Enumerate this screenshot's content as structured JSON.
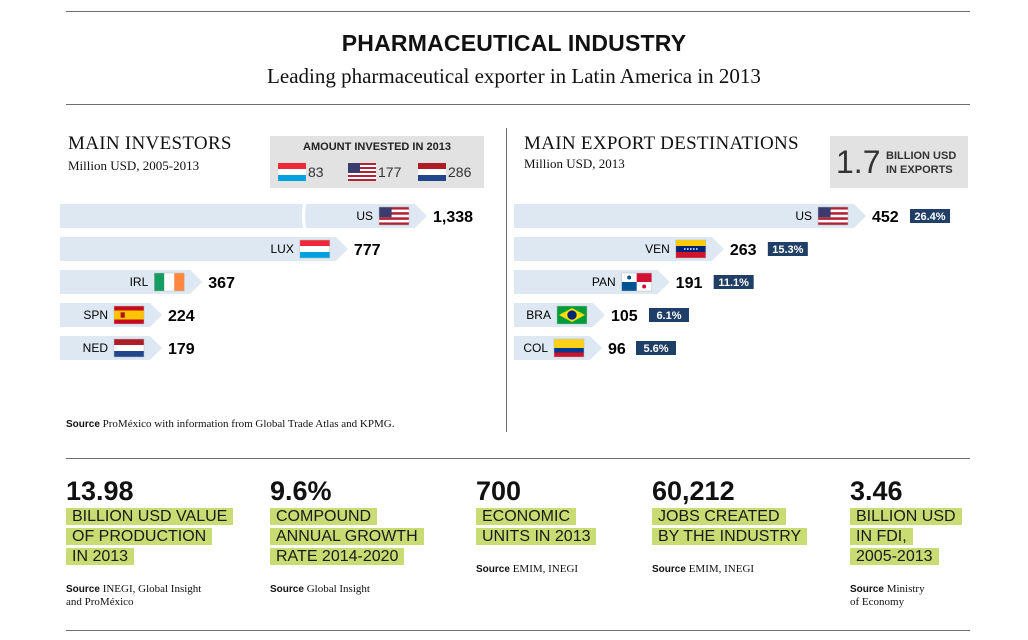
{
  "header": {
    "title": "PHARMACEUTICAL INDUSTRY",
    "subtitle": "Leading pharmaceutical exporter in Latin America in 2013"
  },
  "investors": {
    "heading": "MAIN INVESTORS",
    "subheading": "Million USD, 2005-2013",
    "legend": {
      "title": "AMOUNT INVESTED IN 2013",
      "items": [
        {
          "flag": "luxembourg-flag",
          "value": "83"
        },
        {
          "flag": "us-flag",
          "value": "177"
        },
        {
          "flag": "netherlands-flag",
          "value": "286"
        }
      ]
    },
    "source_label": "Source",
    "source_text": "ProMéxico with information from Global Trade Atlas and KPMG."
  },
  "exports": {
    "heading": "MAIN EXPORT DESTINATIONS",
    "subheading": "Million USD, 2013",
    "total_value": "1.7",
    "total_label_1": "BILLION USD",
    "total_label_2": "IN EXPORTS"
  },
  "chart_data": [
    {
      "type": "bar",
      "title": "MAIN INVESTORS",
      "subtitle": "Million USD, 2005-2013",
      "categories": [
        "US",
        "LUX",
        "IRL",
        "SPN",
        "NED"
      ],
      "values": [
        1338,
        777,
        367,
        224,
        179
      ],
      "value_labels": [
        "1,338",
        "777",
        "367",
        "224",
        "179"
      ],
      "flags": [
        "us-flag",
        "luxembourg-flag",
        "ireland-flag",
        "spain-flag",
        "netherlands-flag"
      ],
      "axis_break": true
    },
    {
      "type": "bar",
      "title": "MAIN EXPORT DESTINATIONS",
      "subtitle": "Million USD, 2013",
      "categories": [
        "US",
        "VEN",
        "PAN",
        "BRA",
        "COL"
      ],
      "values": [
        452,
        263,
        191,
        105,
        96
      ],
      "value_labels": [
        "452",
        "263",
        "191",
        "105",
        "96"
      ],
      "shares": [
        "26.4%",
        "15.3%",
        "11.1%",
        "6.1%",
        "5.6%"
      ],
      "flags": [
        "us-flag",
        "venezuela-flag",
        "panama-flag",
        "brazil-flag",
        "colombia-flag"
      ]
    }
  ],
  "stats": [
    {
      "value": "13.98",
      "lines": [
        "BILLION USD VALUE",
        "OF PRODUCTION",
        "IN 2013"
      ],
      "source_label": "Source",
      "source_lines": [
        "INEGI, Global Insight",
        "and ProMéxico"
      ]
    },
    {
      "value": "9.6%",
      "lines": [
        "COMPOUND",
        "ANNUAL GROWTH",
        "RATE 2014-2020"
      ],
      "source_label": "Source",
      "source_lines": [
        "Global Insight"
      ]
    },
    {
      "value": "700",
      "lines": [
        "ECONOMIC",
        "UNITS IN 2013"
      ],
      "source_label": "Source",
      "source_lines": [
        "EMIM, INEGI"
      ]
    },
    {
      "value": "60,212",
      "lines": [
        "JOBS CREATED",
        "BY THE INDUSTRY"
      ],
      "source_label": "Source",
      "source_lines": [
        "EMIM, INEGI"
      ]
    },
    {
      "value": "3.46",
      "lines": [
        "BILLION USD",
        "IN FDI,",
        "2005-2013"
      ],
      "source_label": "Source",
      "source_lines": [
        "Ministry",
        "of Economy"
      ]
    }
  ],
  "colors": {
    "bar_fill": "#dde8f2",
    "value_text": "#1e3a5c",
    "badge": "#1f3f66",
    "highlight": "#c9dc73",
    "legend_bg": "#e2e2e2"
  }
}
